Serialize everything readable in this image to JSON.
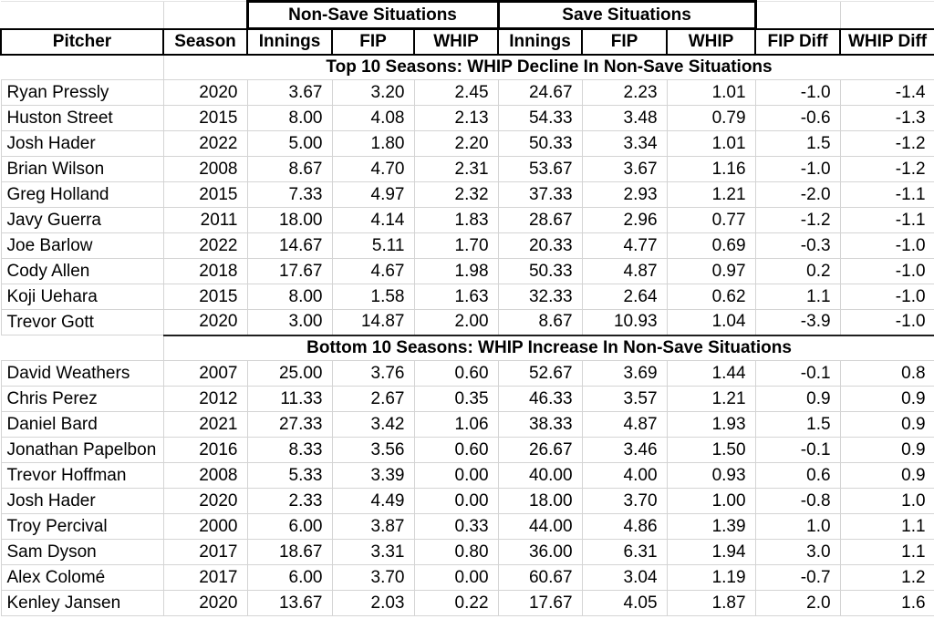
{
  "colors": {
    "background": "#ffffff",
    "text": "#000000",
    "heavy_border": "#000000",
    "gridline": "#d4d4d4"
  },
  "chart_data": {
    "type": "table",
    "group_headers": [
      {
        "label": "Non-Save Situations",
        "span_columns": [
          "Innings",
          "FIP",
          "WHIP"
        ]
      },
      {
        "label": "Save Situations",
        "span_columns": [
          "Innings",
          "FIP",
          "WHIP"
        ]
      }
    ],
    "columns": [
      "Pitcher",
      "Season",
      "Innings",
      "FIP",
      "WHIP",
      "Innings",
      "FIP",
      "WHIP",
      "FIP Diff",
      "WHIP Diff"
    ],
    "sections": [
      {
        "title": "Top 10 Seasons: WHIP Decline In Non-Save Situations",
        "rows": [
          [
            "Ryan Pressly",
            "2020",
            "3.67",
            "3.20",
            "2.45",
            "24.67",
            "2.23",
            "1.01",
            "-1.0",
            "-1.4"
          ],
          [
            "Huston Street",
            "2015",
            "8.00",
            "4.08",
            "2.13",
            "54.33",
            "3.48",
            "0.79",
            "-0.6",
            "-1.3"
          ],
          [
            "Josh Hader",
            "2022",
            "5.00",
            "1.80",
            "2.20",
            "50.33",
            "3.34",
            "1.01",
            "1.5",
            "-1.2"
          ],
          [
            "Brian Wilson",
            "2008",
            "8.67",
            "4.70",
            "2.31",
            "53.67",
            "3.67",
            "1.16",
            "-1.0",
            "-1.2"
          ],
          [
            "Greg Holland",
            "2015",
            "7.33",
            "4.97",
            "2.32",
            "37.33",
            "2.93",
            "1.21",
            "-2.0",
            "-1.1"
          ],
          [
            "Javy Guerra",
            "2011",
            "18.00",
            "4.14",
            "1.83",
            "28.67",
            "2.96",
            "0.77",
            "-1.2",
            "-1.1"
          ],
          [
            "Joe Barlow",
            "2022",
            "14.67",
            "5.11",
            "1.70",
            "20.33",
            "4.77",
            "0.69",
            "-0.3",
            "-1.0"
          ],
          [
            "Cody Allen",
            "2018",
            "17.67",
            "4.67",
            "1.98",
            "50.33",
            "4.87",
            "0.97",
            "0.2",
            "-1.0"
          ],
          [
            "Koji Uehara",
            "2015",
            "8.00",
            "1.58",
            "1.63",
            "32.33",
            "2.64",
            "0.62",
            "1.1",
            "-1.0"
          ],
          [
            "Trevor Gott",
            "2020",
            "3.00",
            "14.87",
            "2.00",
            "8.67",
            "10.93",
            "1.04",
            "-3.9",
            "-1.0"
          ]
        ]
      },
      {
        "title": "Bottom 10 Seasons: WHIP Increase In Non-Save Situations",
        "rows": [
          [
            "David Weathers",
            "2007",
            "25.00",
            "3.76",
            "0.60",
            "52.67",
            "3.69",
            "1.44",
            "-0.1",
            "0.8"
          ],
          [
            "Chris Perez",
            "2012",
            "11.33",
            "2.67",
            "0.35",
            "46.33",
            "3.57",
            "1.21",
            "0.9",
            "0.9"
          ],
          [
            "Daniel Bard",
            "2021",
            "27.33",
            "3.42",
            "1.06",
            "38.33",
            "4.87",
            "1.93",
            "1.5",
            "0.9"
          ],
          [
            "Jonathan Papelbon",
            "2016",
            "8.33",
            "3.56",
            "0.60",
            "26.67",
            "3.46",
            "1.50",
            "-0.1",
            "0.9"
          ],
          [
            "Trevor Hoffman",
            "2008",
            "5.33",
            "3.39",
            "0.00",
            "40.00",
            "4.00",
            "0.93",
            "0.6",
            "0.9"
          ],
          [
            "Josh Hader",
            "2020",
            "2.33",
            "4.49",
            "0.00",
            "18.00",
            "3.70",
            "1.00",
            "-0.8",
            "1.0"
          ],
          [
            "Troy Percival",
            "2000",
            "6.00",
            "3.87",
            "0.33",
            "44.00",
            "4.86",
            "1.39",
            "1.0",
            "1.1"
          ],
          [
            "Sam Dyson",
            "2017",
            "18.67",
            "3.31",
            "0.80",
            "36.00",
            "6.31",
            "1.94",
            "3.0",
            "1.1"
          ],
          [
            "Alex Colomé",
            "2017",
            "6.00",
            "3.70",
            "0.00",
            "60.67",
            "3.04",
            "1.19",
            "-0.7",
            "1.2"
          ],
          [
            "Kenley Jansen",
            "2020",
            "13.67",
            "2.03",
            "0.22",
            "17.67",
            "4.05",
            "1.87",
            "2.0",
            "1.6"
          ]
        ]
      }
    ]
  }
}
